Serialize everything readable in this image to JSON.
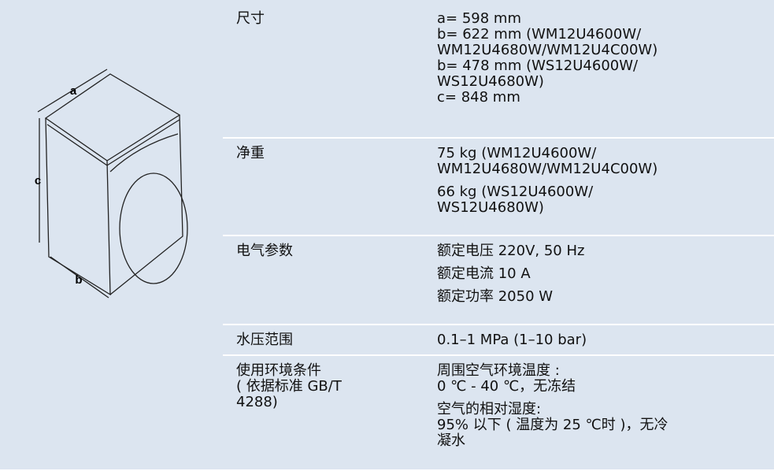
{
  "diagram": {
    "labels": [
      "a",
      "b",
      "c"
    ]
  },
  "table": {
    "rows": [
      {
        "label": [
          "尺寸"
        ],
        "value": [
          [
            "a= 598 mm",
            "b= 622 mm (WM12U4600W/",
            "WM12U4680W/WM12U4C00W)",
            "b= 478 mm (WS12U4600W/",
            "WS12U4680W)",
            "c= 848 mm"
          ]
        ]
      },
      {
        "label": [
          "净重"
        ],
        "value": [
          [
            "75 kg (WM12U4600W/",
            "WM12U4680W/WM12U4C00W)"
          ],
          [
            "66 kg (WS12U4600W/",
            "WS12U4680W)"
          ]
        ]
      },
      {
        "label": [
          "电气参数"
        ],
        "value": [
          [
            "额定电压 220V, 50 Hz"
          ],
          [
            "额定电流 10 A"
          ],
          [
            "额定功率 2050 W"
          ]
        ]
      },
      {
        "label": [
          "水压范围"
        ],
        "value": [
          [
            "0.1–1 MPa (1–10 bar)"
          ]
        ]
      },
      {
        "label": [
          "使用环境条件",
          "( 依据标准 GB/T",
          "4288)"
        ],
        "value": [
          [
            "周围空气环境温度 :",
            "0 ℃ - 40 ℃，无冻结"
          ],
          [
            "空气的相对湿度:",
            "95% 以下 ( 温度为 25 ℃时 )，无冷",
            "凝水"
          ]
        ]
      }
    ]
  }
}
